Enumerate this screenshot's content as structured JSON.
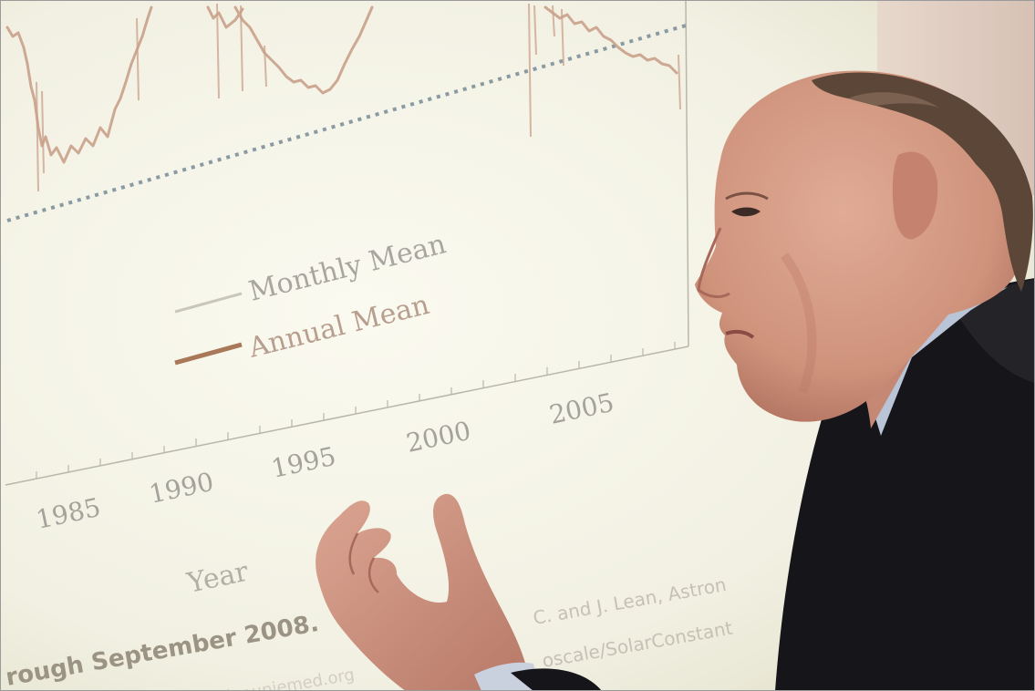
{
  "slide": {
    "legend": {
      "monthly": "Monthly Mean",
      "annual": "Annual Mean"
    },
    "ticks": [
      "1985",
      "1990",
      "1995",
      "2000",
      "2005"
    ],
    "xlabel": "Year",
    "caption_bold": "rough September 2008.",
    "caption_right_1": "C. and J. Lean, Astron",
    "caption_right_2": "oscale/SolarConstant",
    "caption_bottom": "lar.uniemed.org"
  },
  "colors": {
    "screen": "#f4f3e8",
    "curve": "#c8a088",
    "annual_line": "#a87858",
    "trend": "#8a9aa2",
    "suit": "#15151a",
    "skin": "#d49a84",
    "shirt": "#b9c4d6"
  }
}
